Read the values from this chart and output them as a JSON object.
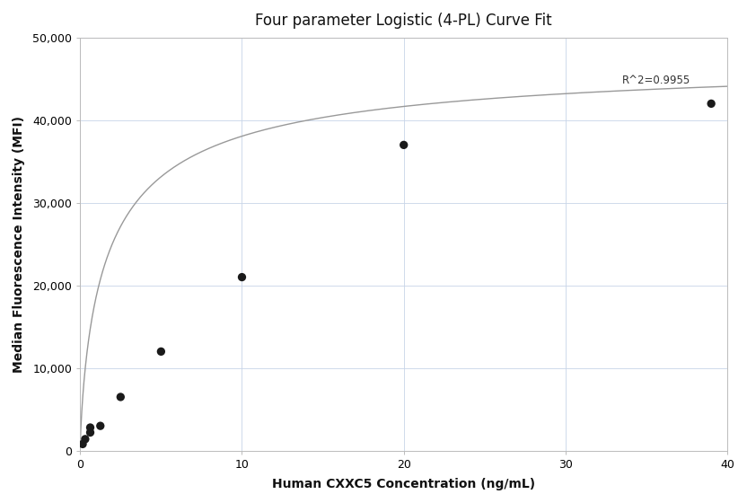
{
  "title": "Four parameter Logistic (4-PL) Curve Fit",
  "xlabel": "Human CXXC5 Concentration (ng/mL)",
  "ylabel": "Median Fluorescence Intensity (MFI)",
  "scatter_x": [
    0.156,
    0.313,
    0.625,
    0.625,
    1.25,
    2.5,
    5.0,
    10.0,
    20.0,
    39.0
  ],
  "scatter_y": [
    800,
    1400,
    2200,
    2800,
    3000,
    6500,
    12000,
    21000,
    37000,
    42000
  ],
  "xlim": [
    0,
    40
  ],
  "ylim": [
    0,
    50000
  ],
  "xticks": [
    0,
    10,
    20,
    30,
    40
  ],
  "yticks": [
    0,
    10000,
    20000,
    30000,
    40000,
    50000
  ],
  "ytick_labels": [
    "0",
    "10,000",
    "20,000",
    "30,000",
    "40,000",
    "50,000"
  ],
  "r2_text": "R^2=0.9955",
  "r2_x": 33.5,
  "r2_y": 44800,
  "curve_color": "#999999",
  "scatter_color": "#1a1a1a",
  "grid_color": "#c8d4e8",
  "bg_color": "#ffffff",
  "4pl_A": 200,
  "4pl_B": 0.78,
  "4pl_C": 1.8,
  "4pl_D": 48000,
  "title_fontsize": 12,
  "label_fontsize": 10,
  "tick_fontsize": 9
}
